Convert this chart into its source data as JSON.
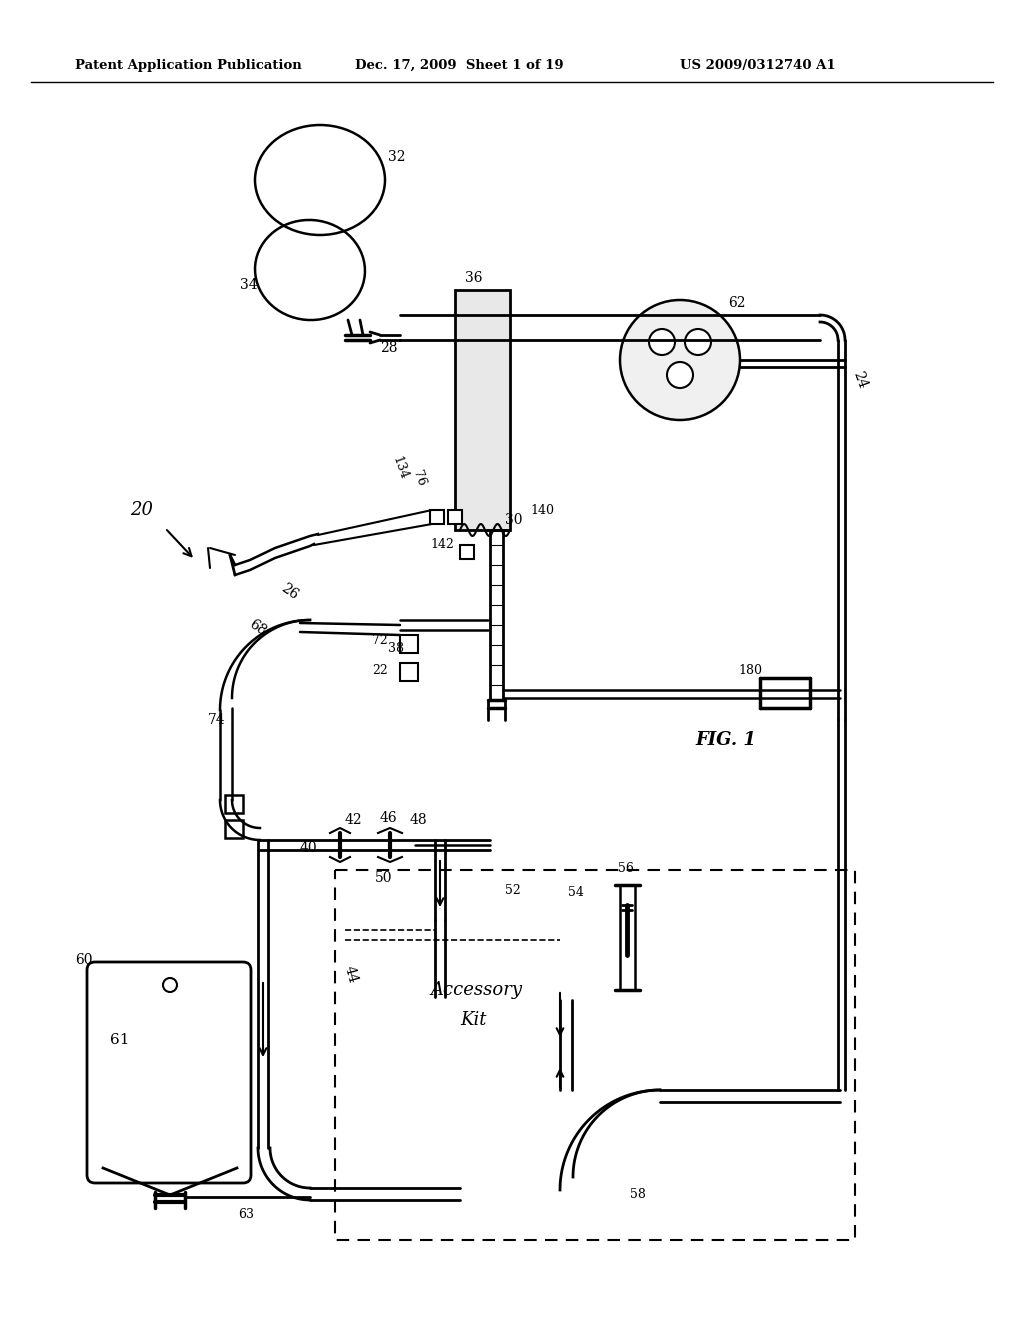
{
  "background_color": "#ffffff",
  "header_line1": "Patent Application Publication",
  "header_line2": "Dec. 17, 2009  Sheet 1 of 19",
  "header_line3": "US 2009/0312740 A1",
  "fig_label": "FIG. 1",
  "fig_width": 10.24,
  "fig_height": 13.2,
  "dpi": 100
}
